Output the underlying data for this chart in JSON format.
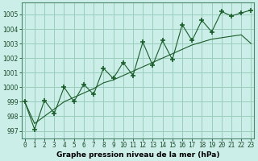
{
  "title": "Graphe pression niveau de la mer (hPa)",
  "x_labels": [
    "0",
    "1",
    "2",
    "3",
    "4",
    "5",
    "6",
    "7",
    "8",
    "9",
    "10",
    "11",
    "12",
    "13",
    "14",
    "15",
    "16",
    "17",
    "18",
    "19",
    "20",
    "21",
    "22",
    "23"
  ],
  "ylim": [
    996.5,
    1005.8
  ],
  "xlim": [
    -0.3,
    23.3
  ],
  "yticks": [
    997,
    998,
    999,
    1000,
    1001,
    1002,
    1003,
    1004,
    1005
  ],
  "bg_color": "#cceee8",
  "grid_color": "#99ccbb",
  "line_color": "#1a5c2a",
  "jagged_y": [
    999.0,
    997.1,
    999.1,
    998.2,
    1000.0,
    999.0,
    1000.2,
    999.5,
    1001.3,
    1000.6,
    1001.7,
    1000.8,
    1003.1,
    1001.5,
    1003.2,
    1001.9,
    1004.3,
    1003.2,
    1004.6,
    1003.8,
    1005.2,
    1004.9,
    1005.1,
    1005.3
  ],
  "smooth_y": [
    999.0,
    997.5,
    998.0,
    998.5,
    999.0,
    999.3,
    999.6,
    999.9,
    1000.3,
    1000.5,
    1000.8,
    1001.1,
    1001.4,
    1001.7,
    1002.0,
    1002.3,
    1002.6,
    1002.9,
    1003.1,
    1003.3,
    1003.4,
    1003.5,
    1003.6,
    1003.0
  ],
  "tick_fontsize": 5.5,
  "label_fontsize": 6.5
}
